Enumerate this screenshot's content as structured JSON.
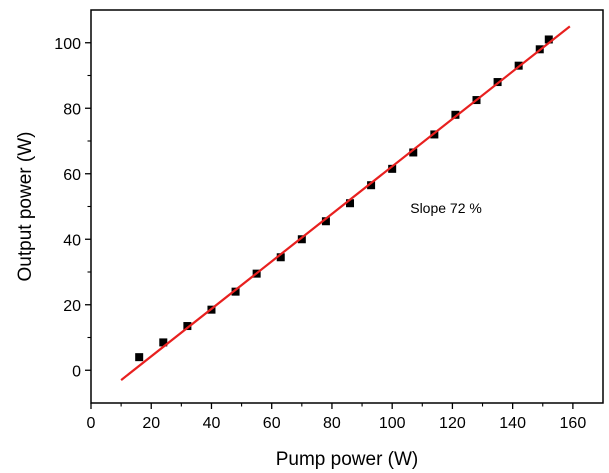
{
  "chart_data": {
    "type": "scatter",
    "title": "",
    "xlabel": "Pump power (W)",
    "ylabel": "Output power (W)",
    "xlim": [
      0,
      170
    ],
    "ylim": [
      -10,
      110
    ],
    "xticks": [
      0,
      20,
      40,
      60,
      80,
      100,
      120,
      140,
      160
    ],
    "yticks": [
      0,
      20,
      40,
      60,
      80,
      100
    ],
    "grid": false,
    "series": [
      {
        "marker": "square",
        "color": "#000000",
        "x": [
          16,
          24,
          32,
          40,
          48,
          55,
          63,
          70,
          78,
          86,
          93,
          100,
          107,
          114,
          121,
          128,
          135,
          142,
          149,
          152
        ],
        "y": [
          4,
          8.5,
          13.5,
          18.5,
          24,
          29.5,
          34.5,
          40,
          45.5,
          51,
          56.5,
          61.5,
          66.5,
          72,
          78,
          82.5,
          88,
          93,
          98,
          101
        ]
      }
    ],
    "fit": {
      "color": "#e8201f",
      "x": [
        10,
        159
      ],
      "y": [
        -3,
        105
      ]
    },
    "annotations": [
      {
        "text": "Slope 72 %",
        "x": 106,
        "y": 48
      }
    ]
  }
}
